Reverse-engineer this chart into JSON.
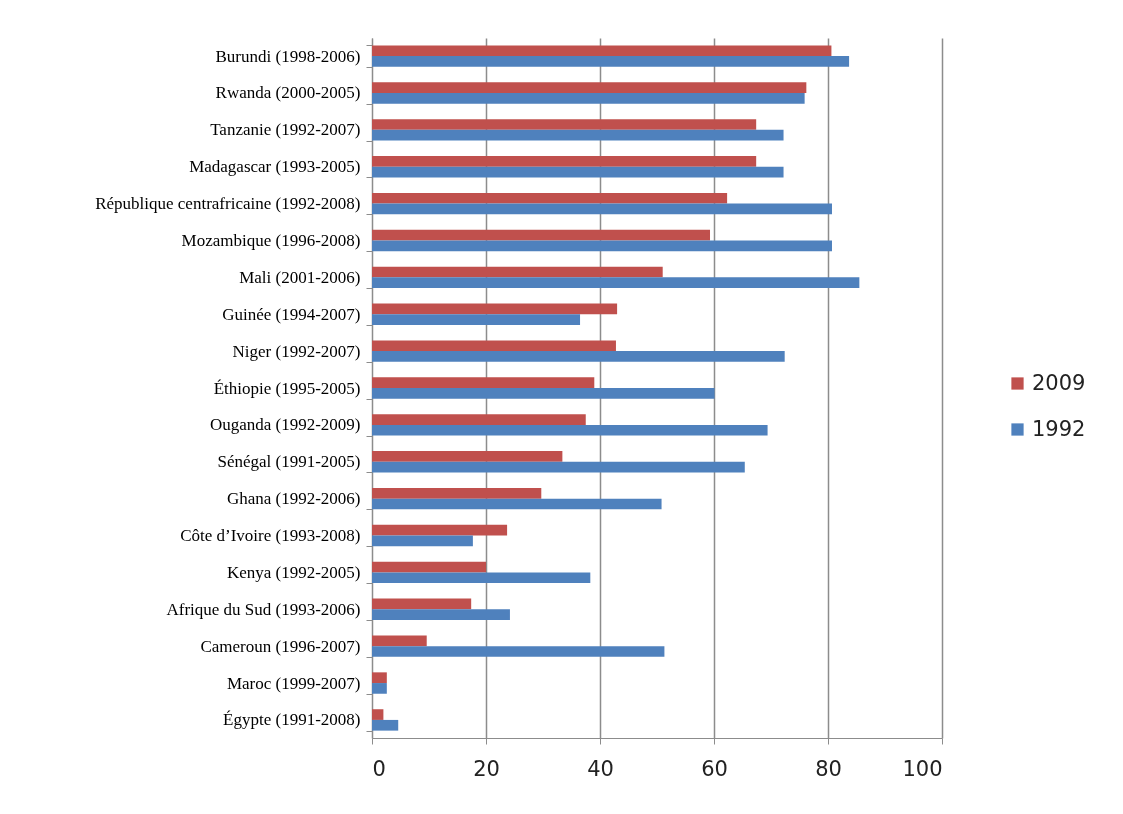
{
  "chart_data": {
    "type": "bar",
    "orientation": "horizontal",
    "categories": [
      "Burundi (1998-2006)",
      "Rwanda (2000-2005)",
      "Tanzanie (1992-2007)",
      "Madagascar (1993-2005)",
      "République centrafricaine (1992-2008)",
      "Mozambique (1996-2008)",
      "Mali (2001-2006)",
      "Guinée (1994-2007)",
      "Niger (1992-2007)",
      "Éthiopie (1995-2005)",
      "Ouganda (1992-2009)",
      "Sénégal (1991-2005)",
      "Ghana (1992-2006)",
      "Côte d’Ivoire (1993-2008)",
      "Kenya (1992-2005)",
      "Afrique du Sud (1993-2006)",
      "Cameroun (1996-2007)",
      "Maroc (1999-2007)",
      "Égypte (1991-2008)"
    ],
    "series": [
      {
        "name": "2009",
        "color": "#c0504d",
        "values": [
          80.6,
          76.2,
          67.4,
          67.4,
          62.3,
          59.3,
          51.0,
          43.0,
          42.8,
          39.0,
          37.5,
          33.4,
          29.7,
          23.7,
          20.0,
          17.4,
          9.6,
          2.6,
          2.0
        ]
      },
      {
        "name": "1992",
        "color": "#4f81bd",
        "values": [
          83.7,
          75.9,
          72.2,
          72.2,
          80.7,
          80.7,
          85.5,
          36.5,
          72.4,
          60.1,
          69.4,
          65.4,
          50.8,
          17.7,
          38.3,
          24.2,
          51.3,
          2.6,
          4.6
        ]
      }
    ],
    "xlim": [
      0,
      100
    ],
    "xticks": [
      0,
      20,
      40,
      60,
      80,
      100
    ],
    "grid": "x",
    "legend": "right"
  }
}
